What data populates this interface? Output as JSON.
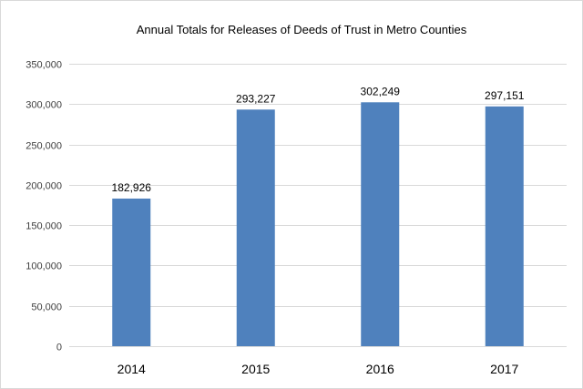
{
  "chart_data": {
    "type": "bar",
    "title": "Annual Totals for Releases of Deeds of Trust in Metro Counties",
    "categories": [
      "2014",
      "2015",
      "2016",
      "2017"
    ],
    "values": [
      182926,
      293227,
      302249,
      297151
    ],
    "data_labels": [
      "182,926",
      "293,227",
      "302,249",
      "297,151"
    ],
    "ylim": [
      0,
      350000
    ],
    "yticks": [
      0,
      50000,
      100000,
      150000,
      200000,
      250000,
      300000,
      350000
    ],
    "ytick_labels": [
      "0",
      "50,000",
      "100,000",
      "150,000",
      "200,000",
      "250,000",
      "300,000",
      "350,000"
    ],
    "xlabel": "",
    "ylabel": "",
    "grid": true,
    "legend": "none",
    "bar_color": "#4f81bd"
  }
}
